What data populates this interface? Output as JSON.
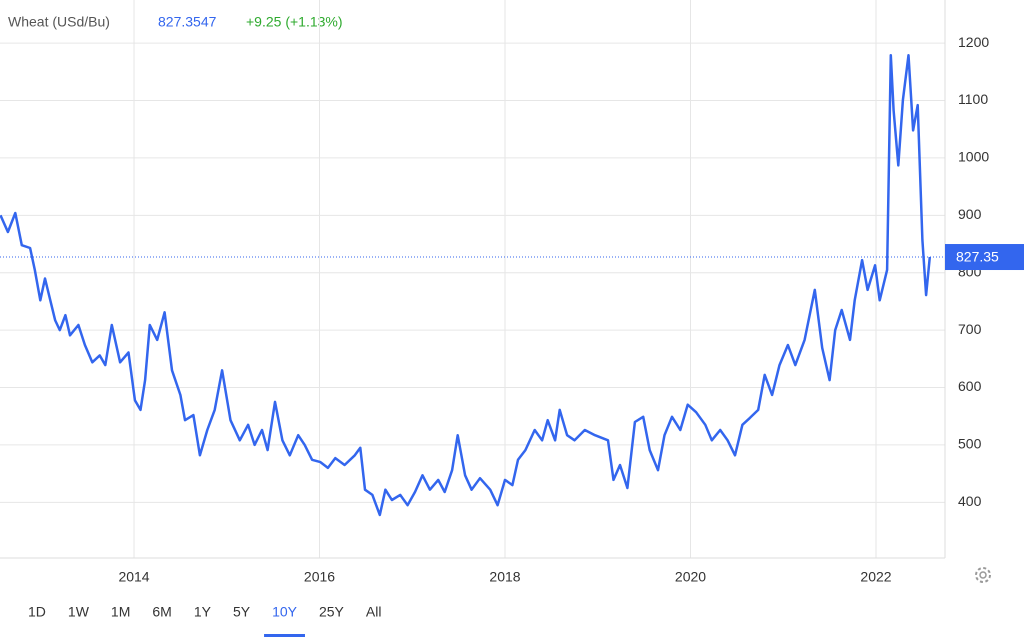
{
  "chart_data": {
    "type": "line",
    "title": "Wheat (USd/Bu)",
    "price": 827.3547,
    "price_label": "827.35",
    "change": "+9.25 (+1.13%)",
    "color": "#3366ee",
    "grid": true,
    "x": [
      2012.56,
      2012.64,
      2012.72,
      2012.79,
      2012.88,
      2012.93,
      2012.99,
      2013.04,
      2013.15,
      2013.2,
      2013.26,
      2013.31,
      2013.4,
      2013.47,
      2013.55,
      2013.63,
      2013.69,
      2013.76,
      2013.85,
      2013.94,
      2014.01,
      2014.07,
      2014.12,
      2014.17,
      2014.25,
      2014.33,
      2014.41,
      2014.5,
      2014.55,
      2014.64,
      2014.71,
      2014.79,
      2014.87,
      2014.95,
      2015.04,
      2015.14,
      2015.23,
      2015.3,
      2015.38,
      2015.44,
      2015.52,
      2015.6,
      2015.68,
      2015.77,
      2015.84,
      2015.92,
      2016.01,
      2016.09,
      2016.17,
      2016.27,
      2016.38,
      2016.44,
      2016.49,
      2016.57,
      2016.65,
      2016.71,
      2016.78,
      2016.87,
      2016.95,
      2017.03,
      2017.11,
      2017.19,
      2017.28,
      2017.35,
      2017.43,
      2017.49,
      2017.57,
      2017.64,
      2017.73,
      2017.84,
      2017.92,
      2018.0,
      2018.08,
      2018.14,
      2018.22,
      2018.32,
      2018.4,
      2018.46,
      2018.54,
      2018.59,
      2018.67,
      2018.75,
      2018.86,
      2018.97,
      2019.11,
      2019.17,
      2019.24,
      2019.32,
      2019.4,
      2019.49,
      2019.56,
      2019.65,
      2019.72,
      2019.8,
      2019.89,
      2019.97,
      2020.06,
      2020.16,
      2020.23,
      2020.32,
      2020.4,
      2020.48,
      2020.56,
      2020.64,
      2020.73,
      2020.8,
      2020.88,
      2020.96,
      2021.05,
      2021.13,
      2021.23,
      2021.34,
      2021.42,
      2021.5,
      2021.56,
      2021.63,
      2021.72,
      2021.77,
      2021.85,
      2021.91,
      2021.99,
      2022.04,
      2022.12,
      2022.16,
      2022.19,
      2022.24,
      2022.29,
      2022.35,
      2022.4,
      2022.45,
      2022.5,
      2022.54,
      2022.58
    ],
    "values": [
      900,
      871,
      904,
      848,
      843,
      805,
      752,
      790,
      717,
      700,
      726,
      691,
      709,
      674,
      644,
      656,
      639,
      709,
      644,
      661,
      578,
      561,
      613,
      709,
      683,
      731,
      630,
      587,
      543,
      552,
      482,
      526,
      561,
      630,
      543,
      508,
      535,
      500,
      526,
      491,
      575,
      508,
      482,
      517,
      500,
      474,
      470,
      460,
      477,
      465,
      482,
      495,
      422,
      413,
      378,
      422,
      404,
      413,
      395,
      418,
      447,
      422,
      439,
      418,
      456,
      517,
      447,
      422,
      442,
      422,
      395,
      439,
      430,
      474,
      491,
      526,
      508,
      543,
      508,
      561,
      517,
      508,
      526,
      517,
      508,
      439,
      465,
      425,
      540,
      549,
      491,
      456,
      517,
      549,
      526,
      570,
      557,
      535,
      508,
      526,
      508,
      482,
      535,
      547,
      561,
      622,
      587,
      639,
      674,
      639,
      683,
      770,
      669,
      613,
      700,
      735,
      683,
      752,
      822,
      770,
      813,
      752,
      805,
      1179,
      1083,
      987,
      1101,
      1179,
      1048,
      1092,
      857,
      761,
      827.35
    ],
    "xlim": [
      2012.555,
      2022.744
    ],
    "xticks": [
      2014,
      2016,
      2018,
      2020,
      2022
    ],
    "ylim": [
      303,
      1249
    ],
    "yticks": [
      400,
      500,
      600,
      700,
      800,
      900,
      1000,
      1100,
      1200
    ],
    "ranges": [
      "1D",
      "1W",
      "1M",
      "6M",
      "1Y",
      "5Y",
      "10Y",
      "25Y",
      "All"
    ],
    "active_range": "10Y"
  }
}
